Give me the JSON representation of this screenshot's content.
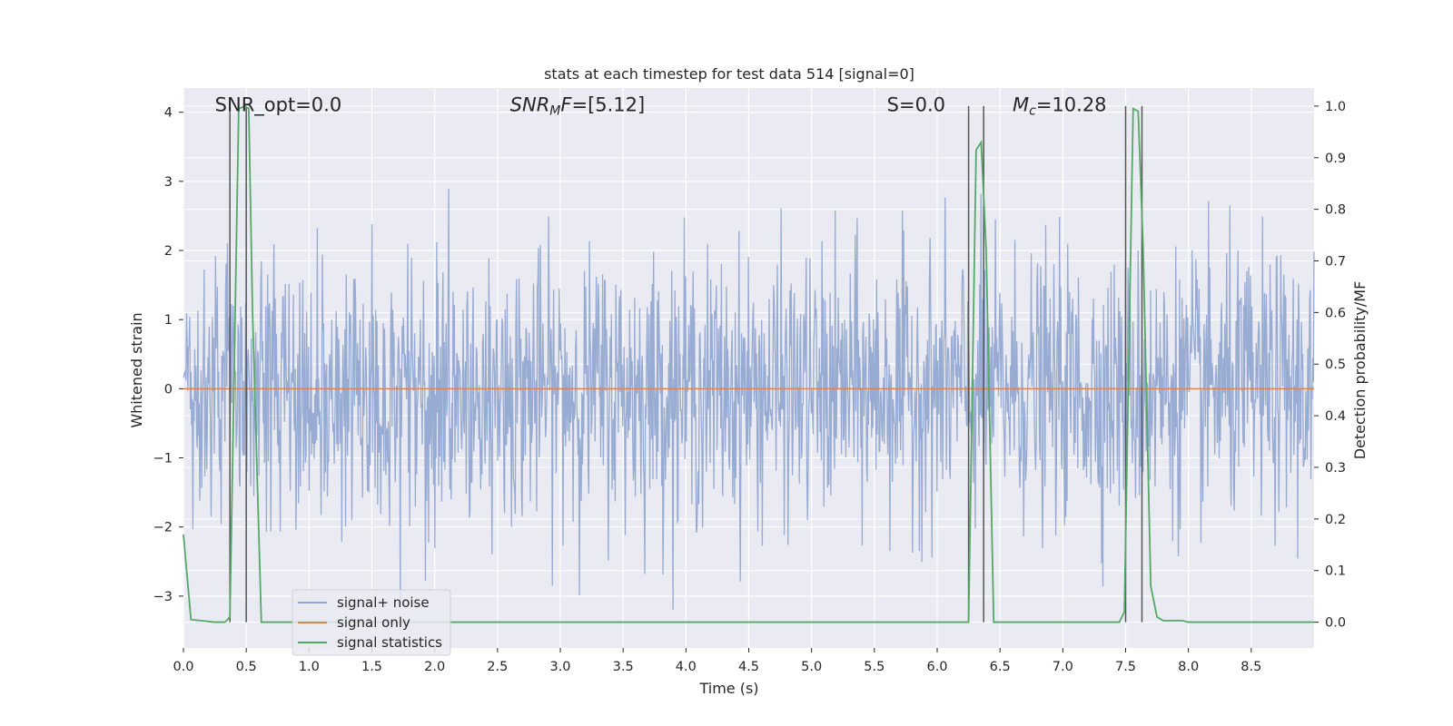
{
  "chart_data": {
    "type": "line",
    "title": "stats at each timestep for test data 514 [signal=0]",
    "xlabel": "Time (s)",
    "ylabel_left": "Whitened strain",
    "ylabel_right": "Detection probability/MF",
    "xlim": [
      0.0,
      9.0
    ],
    "ylim_left": [
      -3.75,
      4.35
    ],
    "ylim_right": [
      -0.05,
      1.035
    ],
    "x_ticks": [
      0.0,
      0.5,
      1.0,
      1.5,
      2.0,
      2.5,
      3.0,
      3.5,
      4.0,
      4.5,
      5.0,
      5.5,
      6.0,
      6.5,
      7.0,
      7.5,
      8.0,
      8.5
    ],
    "x_tick_labels": [
      "0.0",
      "0.5",
      "1.0",
      "1.5",
      "2.0",
      "2.5",
      "3.0",
      "3.5",
      "4.0",
      "4.5",
      "5.0",
      "5.5",
      "6.0",
      "6.5",
      "7.0",
      "7.5",
      "8.0",
      "8.5"
    ],
    "y_left_ticks": [
      -3,
      -2,
      -1,
      0,
      1,
      2,
      3,
      4
    ],
    "y_left_tick_labels": [
      "−3",
      "−2",
      "−1",
      "0",
      "1",
      "2",
      "3",
      "4"
    ],
    "y_right_ticks": [
      0.0,
      0.1,
      0.2,
      0.3,
      0.4,
      0.5,
      0.6,
      0.7,
      0.8,
      0.9,
      1.0
    ],
    "y_right_tick_labels": [
      "0.0",
      "0.1",
      "0.2",
      "0.3",
      "0.4",
      "0.5",
      "0.6",
      "0.7",
      "0.8",
      "0.9",
      "1.0"
    ],
    "grid": true,
    "legend_placement": "lower-left",
    "annotations": [
      {
        "text": "SNR_opt=0.0",
        "x": 0.2
      },
      {
        "text": "SNR_MF=[5.12]",
        "x": 2.6
      },
      {
        "text": "S=0.0",
        "x": 5.6
      },
      {
        "text": "M_c=10.28",
        "x": 6.6
      }
    ],
    "series": [
      {
        "name": "signal+ noise",
        "color": "#92a8d1",
        "axis": "left",
        "kind": "noise",
        "x_range": [
          0.0,
          9.0
        ],
        "samples": 1800,
        "approx_std": 0.95,
        "approx_range": [
          -3.2,
          4.0
        ]
      },
      {
        "name": "signal only",
        "color": "#dd8452",
        "axis": "left",
        "x": [
          0.0,
          9.0
        ],
        "y": [
          0.0,
          0.0
        ]
      },
      {
        "name": "signal statistics",
        "color": "#55a868",
        "axis": "right",
        "x": [
          0.0,
          0.06,
          0.25,
          0.33,
          0.37,
          0.44,
          0.49,
          0.52,
          0.55,
          0.62,
          6.18,
          6.25,
          6.31,
          6.35,
          6.39,
          6.45,
          7.45,
          7.49,
          7.56,
          7.6,
          7.64,
          7.7,
          7.75,
          7.8,
          7.95,
          8.0,
          9.0
        ],
        "y": [
          0.17,
          0.005,
          0.0,
          0.0,
          0.01,
          0.995,
          1.0,
          0.995,
          0.6,
          0.0,
          0.0,
          0.0,
          0.915,
          0.93,
          0.72,
          0.0,
          0.0,
          0.02,
          0.995,
          0.99,
          0.72,
          0.07,
          0.01,
          0.003,
          0.003,
          0.0,
          0.0
        ]
      }
    ],
    "vertical_lines": [
      0.37,
      0.5,
      6.25,
      6.37,
      7.5,
      7.63
    ],
    "vertical_line_color": "#555555"
  }
}
